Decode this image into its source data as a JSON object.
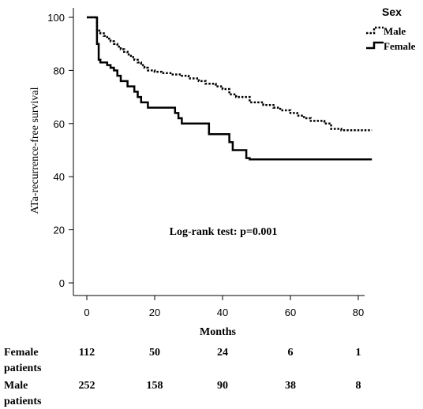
{
  "chart_data": {
    "type": "line",
    "title": "",
    "xlabel": "Months",
    "ylabel": "ATa-recurrence-free survival",
    "xlim": [
      0,
      84
    ],
    "ylim": [
      0,
      100
    ],
    "x_ticks": [
      "0",
      "20",
      "40",
      "60",
      "80"
    ],
    "y_ticks": [
      "0",
      "20",
      "40",
      "60",
      "80",
      "100"
    ],
    "grid": false,
    "legend": {
      "title": "Sex",
      "position": "top-right",
      "entries": [
        "Male",
        "Female"
      ]
    },
    "annotation": "Log-rank test: p=0.001",
    "series": [
      {
        "name": "Male",
        "style": "dotted",
        "color": "#000000",
        "x": [
          0,
          3,
          4,
          5,
          6,
          7,
          8,
          9,
          10,
          11,
          12,
          13,
          14,
          15,
          16,
          17,
          18,
          20,
          22,
          25,
          28,
          30,
          33,
          35,
          38,
          40,
          42,
          44,
          48,
          52,
          55,
          57,
          60,
          62,
          64,
          66,
          70,
          72,
          75,
          80,
          84
        ],
        "y": [
          100,
          95,
          94,
          93,
          92,
          91,
          90,
          89,
          88,
          87,
          86,
          85,
          84,
          83,
          82,
          81,
          80,
          79.5,
          79,
          78.5,
          78,
          77,
          76,
          75,
          74,
          73,
          71,
          70,
          68,
          67,
          66,
          65,
          64,
          63,
          62,
          61,
          60,
          58,
          57.5,
          57.5,
          57.5
        ]
      },
      {
        "name": "Female",
        "style": "solid",
        "color": "#000000",
        "x": [
          0,
          3,
          3.5,
          4,
          6,
          7,
          8,
          9,
          10,
          12,
          14,
          15,
          16,
          18,
          26,
          27,
          28,
          36,
          42,
          43,
          47,
          48,
          84
        ],
        "y": [
          100,
          90,
          84,
          83,
          82,
          81,
          80,
          78,
          76,
          74,
          72,
          70,
          68,
          66,
          64,
          62,
          60,
          56,
          53,
          50,
          47,
          46.5,
          46.5
        ]
      }
    ]
  },
  "risk_table": {
    "rows": [
      {
        "label_line1": "Female",
        "label_line2": "patients",
        "values": [
          "112",
          "50",
          "24",
          "6",
          "1"
        ]
      },
      {
        "label_line1": "Male",
        "label_line2": "patients",
        "values": [
          "252",
          "158",
          "90",
          "38",
          "8"
        ]
      }
    ]
  }
}
